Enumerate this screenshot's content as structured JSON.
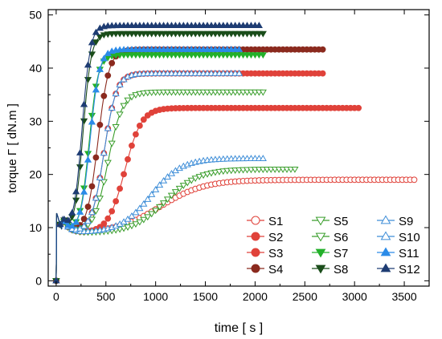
{
  "chart_data": {
    "type": "scatter",
    "title": "",
    "xlabel": "time   [ s ]",
    "ylabel": "torque Γ   [ dN.m ]",
    "xlim": [
      -80,
      3750
    ],
    "ylim": [
      -1,
      51
    ],
    "xticks": [
      0,
      500,
      1000,
      1500,
      2000,
      2500,
      3000,
      3500
    ],
    "yticks": [
      0,
      10,
      20,
      30,
      40,
      50
    ],
    "grid": false,
    "legend_position": "bottom-right",
    "series": [
      {
        "name": "S1",
        "color": "#e0423a",
        "marker": "circle-open",
        "curve": {
          "t_end": 3600,
          "baseline": 9,
          "plateau": 19,
          "t_half": 1050,
          "k": 0.0045
        }
      },
      {
        "name": "S2",
        "color": "#e0423a",
        "marker": "circle-cross",
        "curve": {
          "t_end": 3050,
          "baseline": 9,
          "plateau": 32.5,
          "t_half": 690,
          "k": 0.012
        }
      },
      {
        "name": "S3",
        "color": "#e0423a",
        "marker": "circle-filled",
        "curve": {
          "t_end": 2700,
          "baseline": 9,
          "plateau": 39,
          "t_half": 480,
          "k": 0.016
        }
      },
      {
        "name": "S4",
        "color": "#8b2a1e",
        "marker": "circle-filled",
        "curve": {
          "t_end": 2700,
          "baseline": 9,
          "plateau": 43.5,
          "t_half": 420,
          "k": 0.018
        }
      },
      {
        "name": "S5",
        "color": "#3a9e2c",
        "marker": "tri-down-open",
        "curve": {
          "t_end": 2400,
          "baseline": 9,
          "plateau": 21,
          "t_half": 1100,
          "k": 0.006
        }
      },
      {
        "name": "S6",
        "color": "#3a9e2c",
        "marker": "tri-down-open",
        "curve": {
          "t_end": 2100,
          "baseline": 9,
          "plateau": 35.5,
          "t_half": 520,
          "k": 0.014
        }
      },
      {
        "name": "S7",
        "color": "#23b02a",
        "marker": "tri-down-filled",
        "curve": {
          "t_end": 2100,
          "baseline": 9,
          "plateau": 42.5,
          "t_half": 330,
          "k": 0.022
        }
      },
      {
        "name": "S8",
        "color": "#1a4d1a",
        "marker": "tri-down-filled",
        "curve": {
          "t_end": 2100,
          "baseline": 9,
          "plateau": 46.5,
          "t_half": 270,
          "k": 0.024
        }
      },
      {
        "name": "S9",
        "color": "#3f8ed8",
        "marker": "tri-up-open",
        "curve": {
          "t_end": 2100,
          "baseline": 9,
          "plateau": 23,
          "t_half": 950,
          "k": 0.0065
        }
      },
      {
        "name": "S10",
        "color": "#3f8ed8",
        "marker": "tri-up-open",
        "curve": {
          "t_end": 1850,
          "baseline": 9,
          "plateau": 39,
          "t_half": 480,
          "k": 0.016
        }
      },
      {
        "name": "S11",
        "color": "#2b8be8",
        "marker": "tri-up-filled",
        "curve": {
          "t_end": 1850,
          "baseline": 9,
          "plateau": 43.5,
          "t_half": 340,
          "k": 0.021
        }
      },
      {
        "name": "S12",
        "color": "#1e3c73",
        "marker": "tri-up-filled",
        "curve": {
          "t_end": 2050,
          "baseline": 9,
          "plateau": 48,
          "t_half": 260,
          "k": 0.024
        }
      }
    ]
  }
}
